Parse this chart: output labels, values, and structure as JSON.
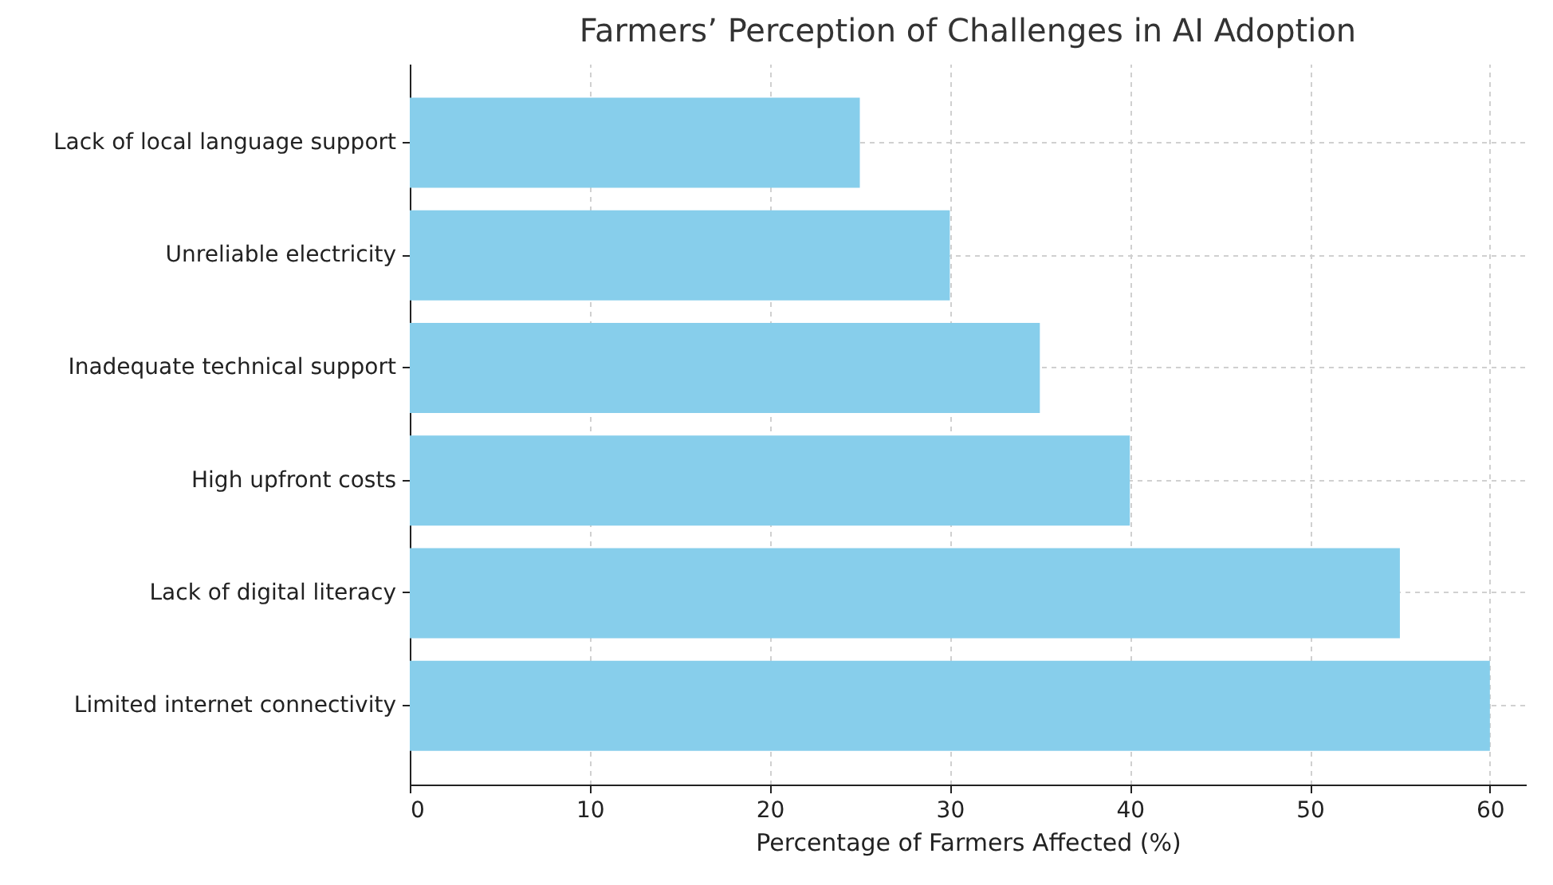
{
  "chart_data": {
    "type": "bar",
    "orientation": "horizontal",
    "title": "Farmers’ Perception of Challenges in AI Adoption",
    "xlabel": "Percentage of Farmers Affected (%)",
    "categories": [
      "Lack of local language support",
      "Unreliable electricity",
      "Inadequate technical support",
      "High upfront costs",
      "Lack of digital literacy",
      "Limited internet connectivity"
    ],
    "values": [
      25,
      30,
      35,
      40,
      55,
      60
    ],
    "color": "#87ceeb",
    "xlim": [
      0,
      62
    ],
    "xticks": [
      0,
      10,
      20,
      30,
      40,
      50,
      60
    ],
    "grid": true
  }
}
